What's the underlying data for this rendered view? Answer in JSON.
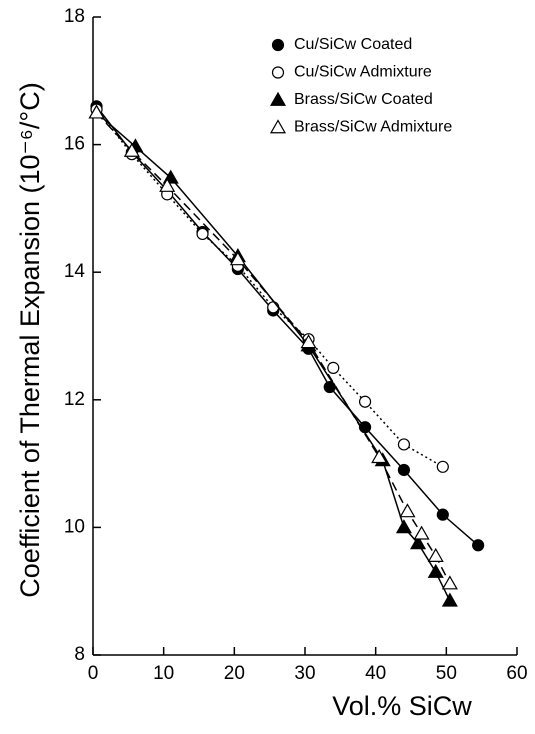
{
  "chart_data": {
    "type": "line",
    "x_label": "Vol.%  SiCw",
    "y_label": "Coefficient of Thermal Expansion (10⁻⁶/°C)",
    "xlim": [
      0,
      60
    ],
    "xticks": [
      0,
      10,
      20,
      30,
      40,
      50,
      60
    ],
    "ylim": [
      8,
      18
    ],
    "yticks": [
      8,
      10,
      12,
      14,
      16,
      18
    ],
    "legend": "upper right",
    "series": [
      {
        "name": "Cu/SiCw Coated",
        "color": "#000000",
        "marker": "filled-circle",
        "line_style": "solid",
        "x": [
          0.5,
          5.5,
          10.5,
          15.5,
          20.5,
          25.5,
          30.5,
          33.5,
          38.5,
          44,
          49.5,
          54.5
        ],
        "values": [
          16.6,
          15.88,
          15.28,
          14.63,
          14.05,
          13.4,
          12.8,
          12.2,
          11.57,
          10.9,
          10.2,
          9.72
        ]
      },
      {
        "name": "Cu/SiCw Admixture",
        "color": "#000000",
        "marker": "open-circle",
        "line_style": "dotted",
        "x": [
          0.5,
          5.5,
          10.5,
          15.5,
          20.5,
          25.5,
          30.5,
          34,
          38.5,
          44,
          49.5
        ],
        "values": [
          16.55,
          15.85,
          15.22,
          14.6,
          14.1,
          13.45,
          12.95,
          12.5,
          11.97,
          11.3,
          10.95
        ]
      },
      {
        "name": "Brass/SiCw Coated",
        "color": "#000000",
        "marker": "filled-triangle",
        "line_style": "solid",
        "x": [
          0.5,
          6,
          11,
          20.5,
          30.5,
          41,
          44,
          46,
          48.5,
          50.5
        ],
        "values": [
          16.5,
          15.97,
          15.48,
          14.25,
          12.85,
          11.05,
          10.0,
          9.75,
          9.3,
          8.85
        ]
      },
      {
        "name": "Brass/SiCw Admixture",
        "color": "#000000",
        "marker": "open-triangle",
        "line_style": "dashed",
        "x": [
          0.5,
          5.5,
          10.5,
          20.5,
          30.5,
          40.5,
          44.5,
          46.5,
          48.5,
          50.5
        ],
        "values": [
          16.5,
          15.9,
          15.35,
          14.2,
          12.9,
          11.1,
          10.25,
          9.9,
          9.55,
          9.12
        ]
      }
    ]
  }
}
